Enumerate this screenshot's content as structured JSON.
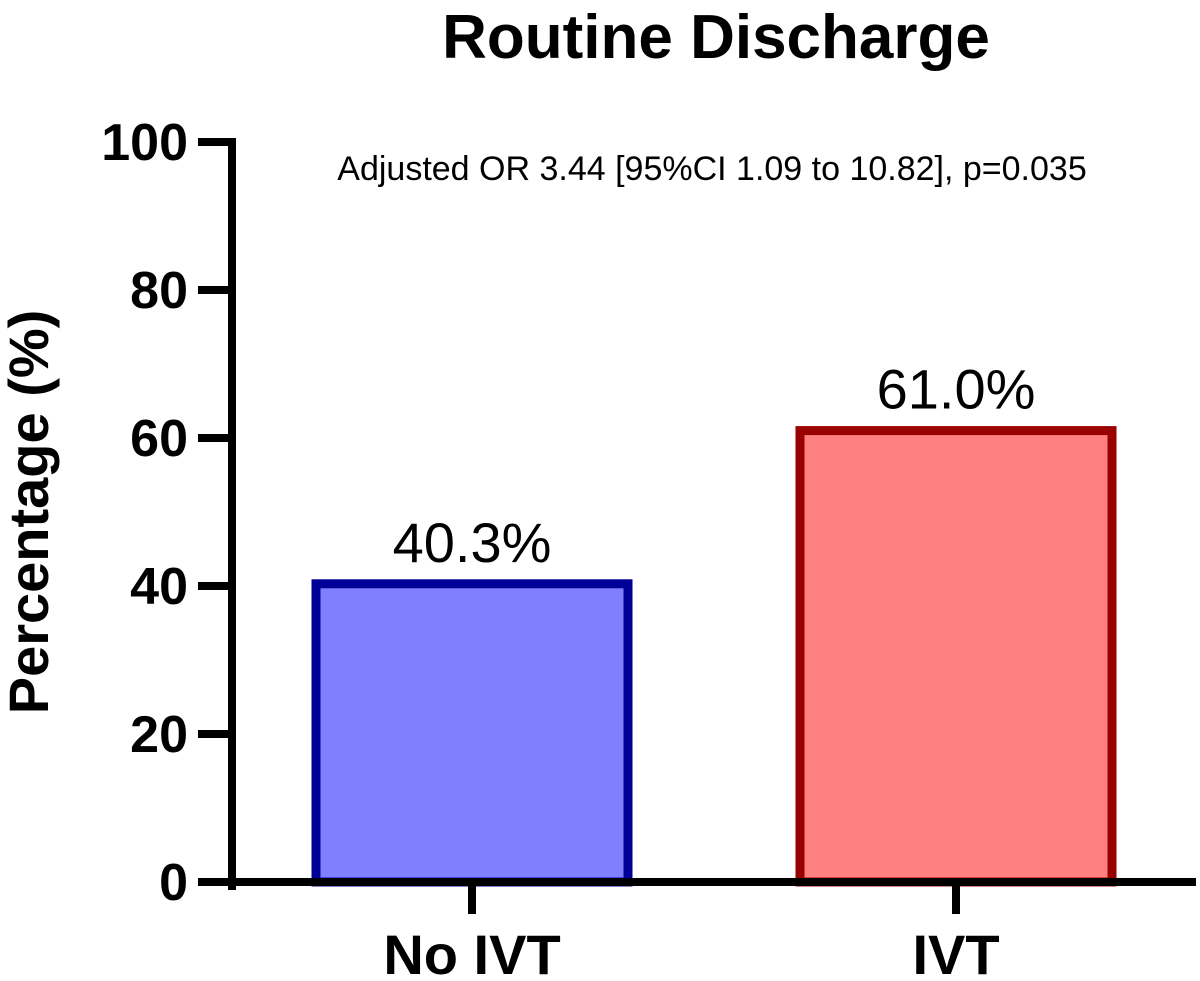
{
  "chart_data": {
    "type": "bar",
    "title": "Routine Discharge",
    "annotation": "Adjusted OR 3.44 [95%CI 1.09 to 10.82], p=0.035",
    "xlabel": "",
    "ylabel": "Percentage (%)",
    "ylim": [
      0,
      100
    ],
    "yticks": [
      "0",
      "20",
      "40",
      "60",
      "80",
      "100"
    ],
    "ytick_values": [
      0,
      20,
      40,
      60,
      80,
      100
    ],
    "categories": [
      "No IVT",
      "IVT"
    ],
    "values": [
      40.3,
      61.0
    ],
    "data_labels": [
      "40.3%",
      "61.0%"
    ],
    "bar_fills": [
      "#8080ff",
      "#ff8080"
    ],
    "bar_strokes": [
      "#000099",
      "#990000"
    ],
    "grid": false
  }
}
